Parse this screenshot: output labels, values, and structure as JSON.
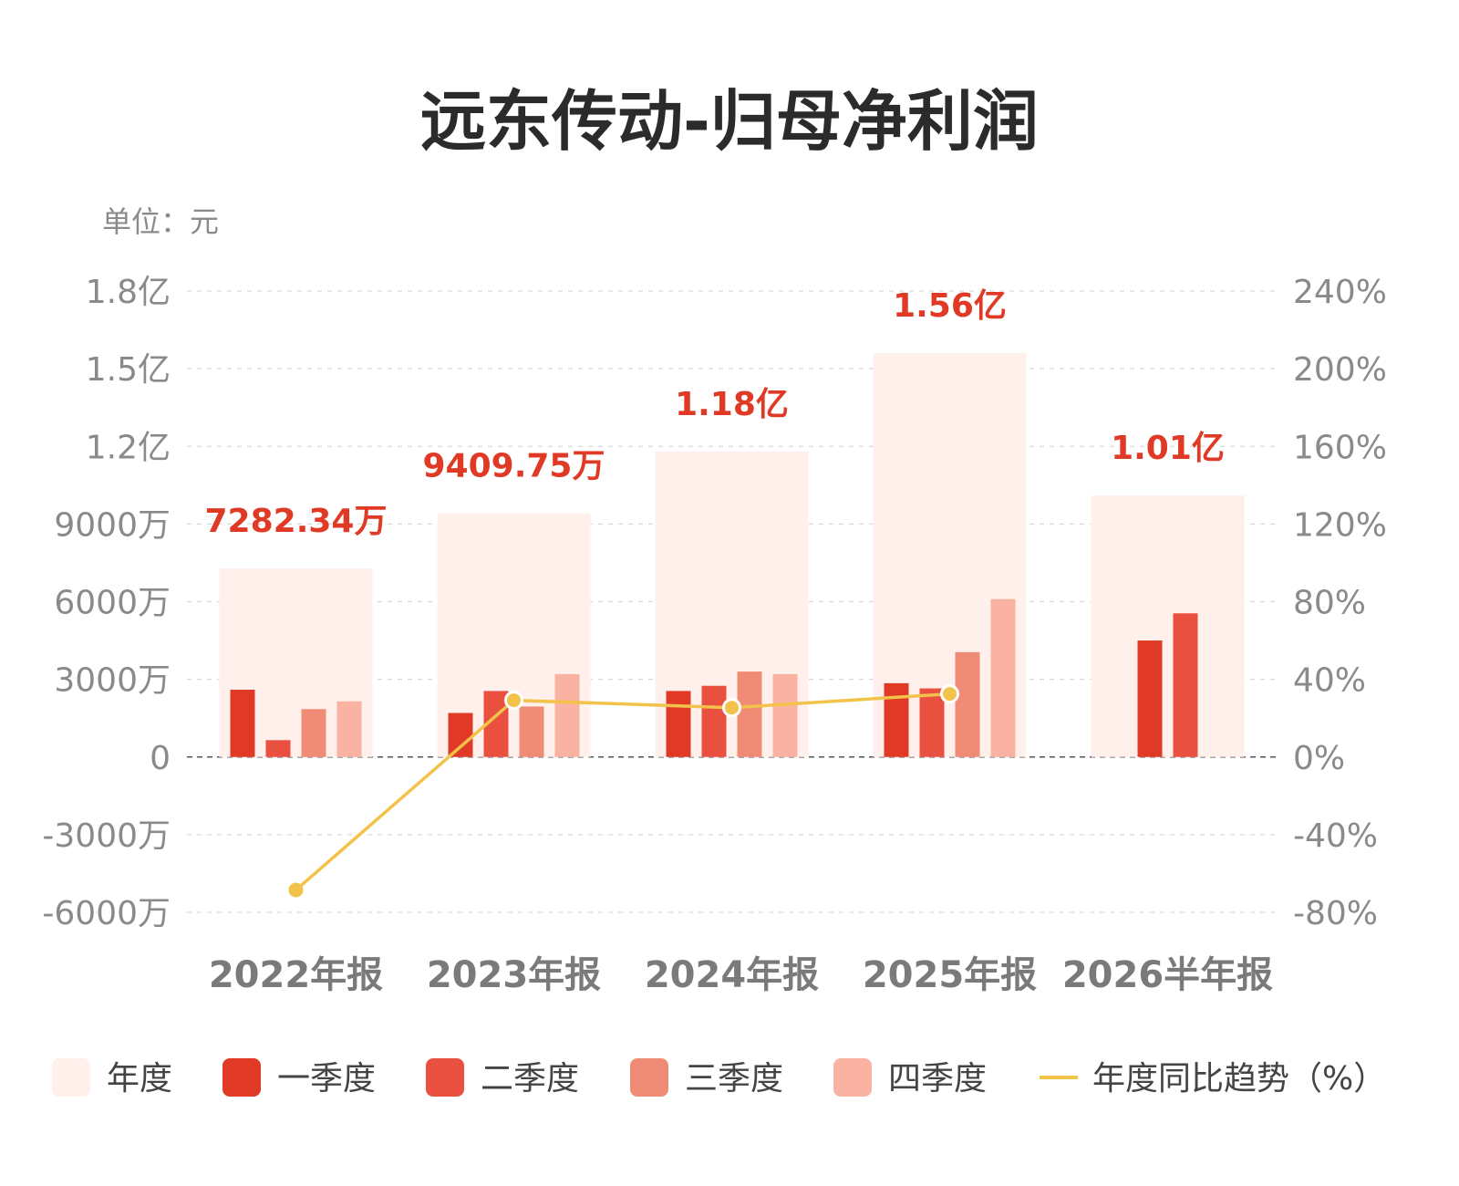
{
  "title": "远东传动-归母净利润",
  "unit_label": "单位：元",
  "chart_data": {
    "type": "bar",
    "categories": [
      "2022年报",
      "2023年报",
      "2024年报",
      "2025年报",
      "2026半年报"
    ],
    "left_axis": {
      "ticks": [
        {
          "value": 180000000,
          "label": "1.8亿"
        },
        {
          "value": 150000000,
          "label": "1.5亿"
        },
        {
          "value": 120000000,
          "label": "1.2亿"
        },
        {
          "value": 90000000,
          "label": "9000万"
        },
        {
          "value": 60000000,
          "label": "6000万"
        },
        {
          "value": 30000000,
          "label": "3000万"
        },
        {
          "value": 0,
          "label": "0"
        },
        {
          "value": -30000000,
          "label": "-3000万"
        },
        {
          "value": -60000000,
          "label": "-6000万"
        }
      ],
      "ylim": [
        -60000000,
        180000000
      ]
    },
    "right_axis": {
      "ticks": [
        {
          "value": 240,
          "label": "240%"
        },
        {
          "value": 200,
          "label": "200%"
        },
        {
          "value": 160,
          "label": "160%"
        },
        {
          "value": 120,
          "label": "120%"
        },
        {
          "value": 80,
          "label": "80%"
        },
        {
          "value": 40,
          "label": "40%"
        },
        {
          "value": 0,
          "label": "0%"
        },
        {
          "value": -40,
          "label": "-40%"
        },
        {
          "value": -80,
          "label": "-80%"
        }
      ],
      "ylim": [
        -80,
        240
      ]
    },
    "series": [
      {
        "name": "年度",
        "color": "#fff0ec",
        "values": [
          72823400,
          94097500,
          118000000,
          156000000,
          101000000
        ]
      },
      {
        "name": "一季度",
        "color": "#e03a26",
        "values": [
          26000000,
          17000000,
          25500000,
          28500000,
          45000000
        ]
      },
      {
        "name": "二季度",
        "color": "#ea5040",
        "values": [
          6500000,
          25500000,
          27500000,
          26500000,
          55500000
        ]
      },
      {
        "name": "三季度",
        "color": "#f08c76",
        "values": [
          18500000,
          19500000,
          33000000,
          40500000,
          null
        ]
      },
      {
        "name": "四季度",
        "color": "#fab3a2",
        "values": [
          21500000,
          32000000,
          32000000,
          61000000,
          null
        ]
      }
    ],
    "annual_labels": [
      "7282.34万",
      "9409.75万",
      "1.18亿",
      "1.56亿",
      "1.01亿"
    ],
    "annual_label_color": "#e03a26",
    "yoy_series": {
      "name": "年度同比趋势（%）",
      "color": "#f2c24a",
      "values": [
        -68.5,
        29.2,
        25.4,
        32.5,
        null
      ]
    },
    "legend_position": "bottom",
    "grid": true
  }
}
